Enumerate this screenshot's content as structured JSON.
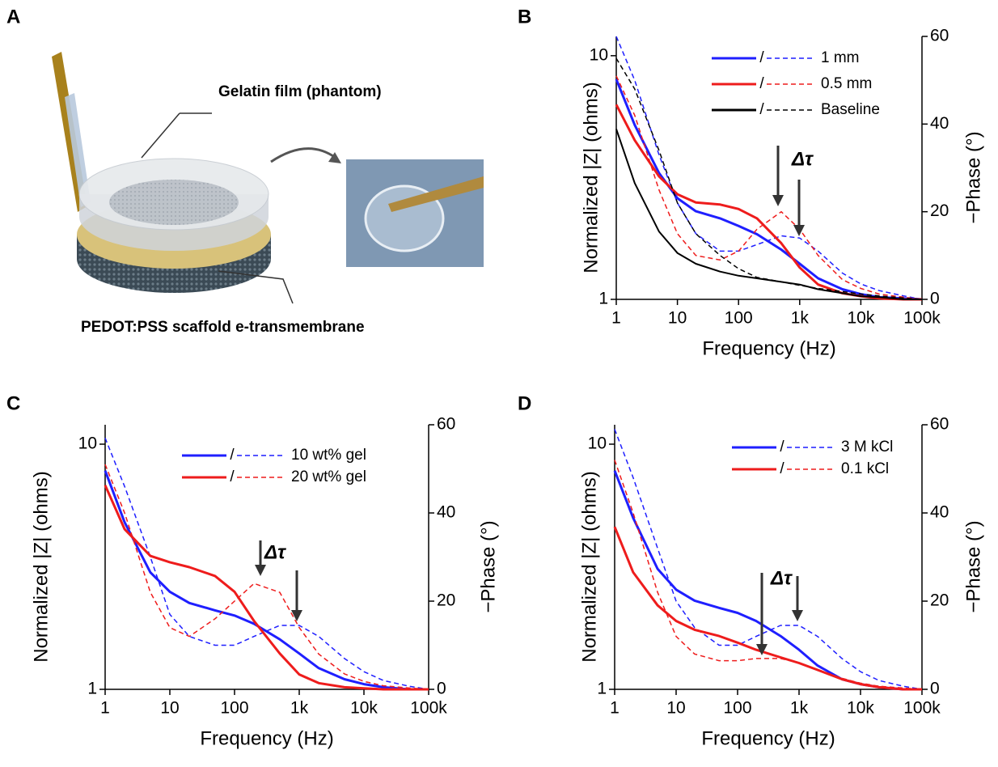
{
  "panel_labels": [
    "A",
    "B",
    "C",
    "D"
  ],
  "illustration": {
    "labels": [
      "Gelatin film (phantom)",
      "PEDOT:PSS scaffold e-transmembrane"
    ]
  },
  "chart_data": [
    {
      "type": "line",
      "x_scale": "log",
      "y_scale": "log",
      "xlabel": "Frequency (Hz)",
      "ylabel": "Normalized |Z| (ohms)",
      "y2label": "−Phase (°)",
      "annotation": "Δτ",
      "legend_separator": "/",
      "legend": "upper right",
      "xlim": [
        1,
        100000
      ],
      "ylim": [
        1,
        12
      ],
      "y2lim": [
        0,
        60
      ],
      "xticks": [
        1,
        10,
        100,
        {
          "value": 1000,
          "label": "1k"
        },
        {
          "value": 10000,
          "label": "10k"
        },
        {
          "value": 100000,
          "label": "100k"
        }
      ],
      "yticks": [
        1,
        10
      ],
      "y2ticks": [
        0,
        20,
        40,
        60
      ],
      "x": [
        1,
        2,
        5,
        10,
        20,
        50,
        100,
        200,
        500,
        1000,
        2000,
        5000,
        10000,
        20000,
        50000,
        100000
      ],
      "series": [
        {
          "name": "1 mm",
          "color": "#1f1fff",
          "values": [
            8,
            5.2,
            3.3,
            2.6,
            2.3,
            2.15,
            2.0,
            1.85,
            1.6,
            1.4,
            1.22,
            1.1,
            1.05,
            1.02,
            1.01,
            1.0
          ]
        },
        {
          "color": "#1f1fff",
          "axis": "y2",
          "values": [
            60,
            50,
            33,
            22,
            15,
            11,
            11,
            12.5,
            14.5,
            14,
            11,
            6,
            3.5,
            2,
            0.8,
            0
          ]
        },
        {
          "name": "0.5 mm",
          "color": "#ee1c1c",
          "values": [
            6.3,
            4.5,
            3.2,
            2.7,
            2.5,
            2.45,
            2.35,
            2.15,
            1.7,
            1.35,
            1.15,
            1.06,
            1.03,
            1.01,
            1.0,
            1.0
          ]
        },
        {
          "color": "#ee1c1c",
          "axis": "y2",
          "values": [
            51,
            42,
            25,
            15,
            10,
            9,
            11,
            16,
            20,
            16,
            10,
            4.5,
            2.5,
            1.2,
            0.5,
            0
          ]
        },
        {
          "name": "Baseline",
          "color": "#000000",
          "values": [
            5,
            3,
            1.9,
            1.55,
            1.4,
            1.3,
            1.25,
            1.22,
            1.18,
            1.15,
            1.1,
            1.06,
            1.03,
            1.02,
            1.0,
            1.0
          ]
        },
        {
          "color": "#000000",
          "axis": "y2",
          "values": [
            55,
            48,
            34,
            22,
            15,
            10,
            7,
            5,
            4,
            3.2,
            2.5,
            1.8,
            1.2,
            0.8,
            0.3,
            0
          ]
        }
      ]
    },
    {
      "type": "line",
      "x_scale": "log",
      "y_scale": "log",
      "xlabel": "Frequency (Hz)",
      "ylabel": "Normalized |Z| (ohms)",
      "y2label": "−Phase (°)",
      "annotation": "Δτ",
      "legend_separator": "/",
      "legend": "upper right",
      "xlim": [
        1,
        100000
      ],
      "ylim": [
        1,
        12
      ],
      "y2lim": [
        0,
        60
      ],
      "xticks": [
        1,
        10,
        100,
        {
          "value": 1000,
          "label": "1k"
        },
        {
          "value": 10000,
          "label": "10k"
        },
        {
          "value": 100000,
          "label": "100k"
        }
      ],
      "yticks": [
        1,
        10
      ],
      "y2ticks": [
        0,
        20,
        40,
        60
      ],
      "x": [
        1,
        2,
        5,
        10,
        20,
        50,
        100,
        200,
        500,
        1000,
        2000,
        5000,
        10000,
        20000,
        50000,
        100000
      ],
      "series": [
        {
          "name": "10 wt% gel",
          "color": "#1f1fff",
          "values": [
            7.8,
            4.8,
            3.0,
            2.5,
            2.25,
            2.1,
            2.0,
            1.85,
            1.6,
            1.4,
            1.22,
            1.1,
            1.05,
            1.02,
            1.0,
            1.0
          ]
        },
        {
          "color": "#1f1fff",
          "axis": "y2",
          "values": [
            57,
            46,
            30,
            17,
            12,
            10,
            10,
            12,
            14.5,
            14.5,
            12,
            7,
            4,
            2,
            0.7,
            0
          ]
        },
        {
          "name": "20 wt% gel",
          "color": "#ee1c1c",
          "values": [
            6.8,
            4.5,
            3.5,
            3.3,
            3.15,
            2.9,
            2.5,
            1.9,
            1.4,
            1.15,
            1.06,
            1.02,
            1.01,
            1.0,
            1.0,
            1.0
          ]
        },
        {
          "color": "#ee1c1c",
          "axis": "y2",
          "values": [
            51,
            40,
            22,
            14,
            12,
            16,
            20,
            24,
            22,
            14,
            8,
            3.5,
            1.8,
            0.8,
            0.3,
            0
          ]
        }
      ]
    },
    {
      "type": "line",
      "x_scale": "log",
      "y_scale": "log",
      "xlabel": "Frequency (Hz)",
      "ylabel": "Normalized |Z| (ohms)",
      "y2label": "−Phase (°)",
      "annotation": "Δτ",
      "legend_separator": "/",
      "legend": "upper right",
      "xlim": [
        1,
        100000
      ],
      "ylim": [
        1,
        12
      ],
      "y2lim": [
        0,
        60
      ],
      "xticks": [
        1,
        10,
        100,
        {
          "value": 1000,
          "label": "1k"
        },
        {
          "value": 10000,
          "label": "10k"
        },
        {
          "value": 100000,
          "label": "100k"
        }
      ],
      "yticks": [
        1,
        10
      ],
      "y2ticks": [
        0,
        20,
        40,
        60
      ],
      "x": [
        1,
        2,
        5,
        10,
        20,
        50,
        100,
        200,
        500,
        1000,
        2000,
        5000,
        10000,
        20000,
        50000,
        100000
      ],
      "series": [
        {
          "name": "3 M kCl",
          "color": "#1f1fff",
          "values": [
            7.8,
            5,
            3.1,
            2.55,
            2.3,
            2.15,
            2.05,
            1.9,
            1.65,
            1.45,
            1.25,
            1.1,
            1.05,
            1.02,
            1.0,
            1.0
          ]
        },
        {
          "color": "#1f1fff",
          "axis": "y2",
          "values": [
            59,
            48,
            32,
            20,
            14,
            10,
            10,
            12,
            14.5,
            14.5,
            12,
            7,
            4,
            2,
            0.7,
            0
          ]
        },
        {
          "name": "0.1 kCl",
          "color": "#ee1c1c",
          "values": [
            4.6,
            3,
            2.2,
            1.9,
            1.75,
            1.65,
            1.55,
            1.45,
            1.35,
            1.28,
            1.2,
            1.1,
            1.05,
            1.02,
            1.0,
            1.0
          ]
        },
        {
          "color": "#ee1c1c",
          "axis": "y2",
          "values": [
            52,
            40,
            22,
            12,
            8,
            6.5,
            6.5,
            7,
            7,
            6,
            4.5,
            2.5,
            1.4,
            0.7,
            0.3,
            0
          ]
        }
      ]
    }
  ]
}
